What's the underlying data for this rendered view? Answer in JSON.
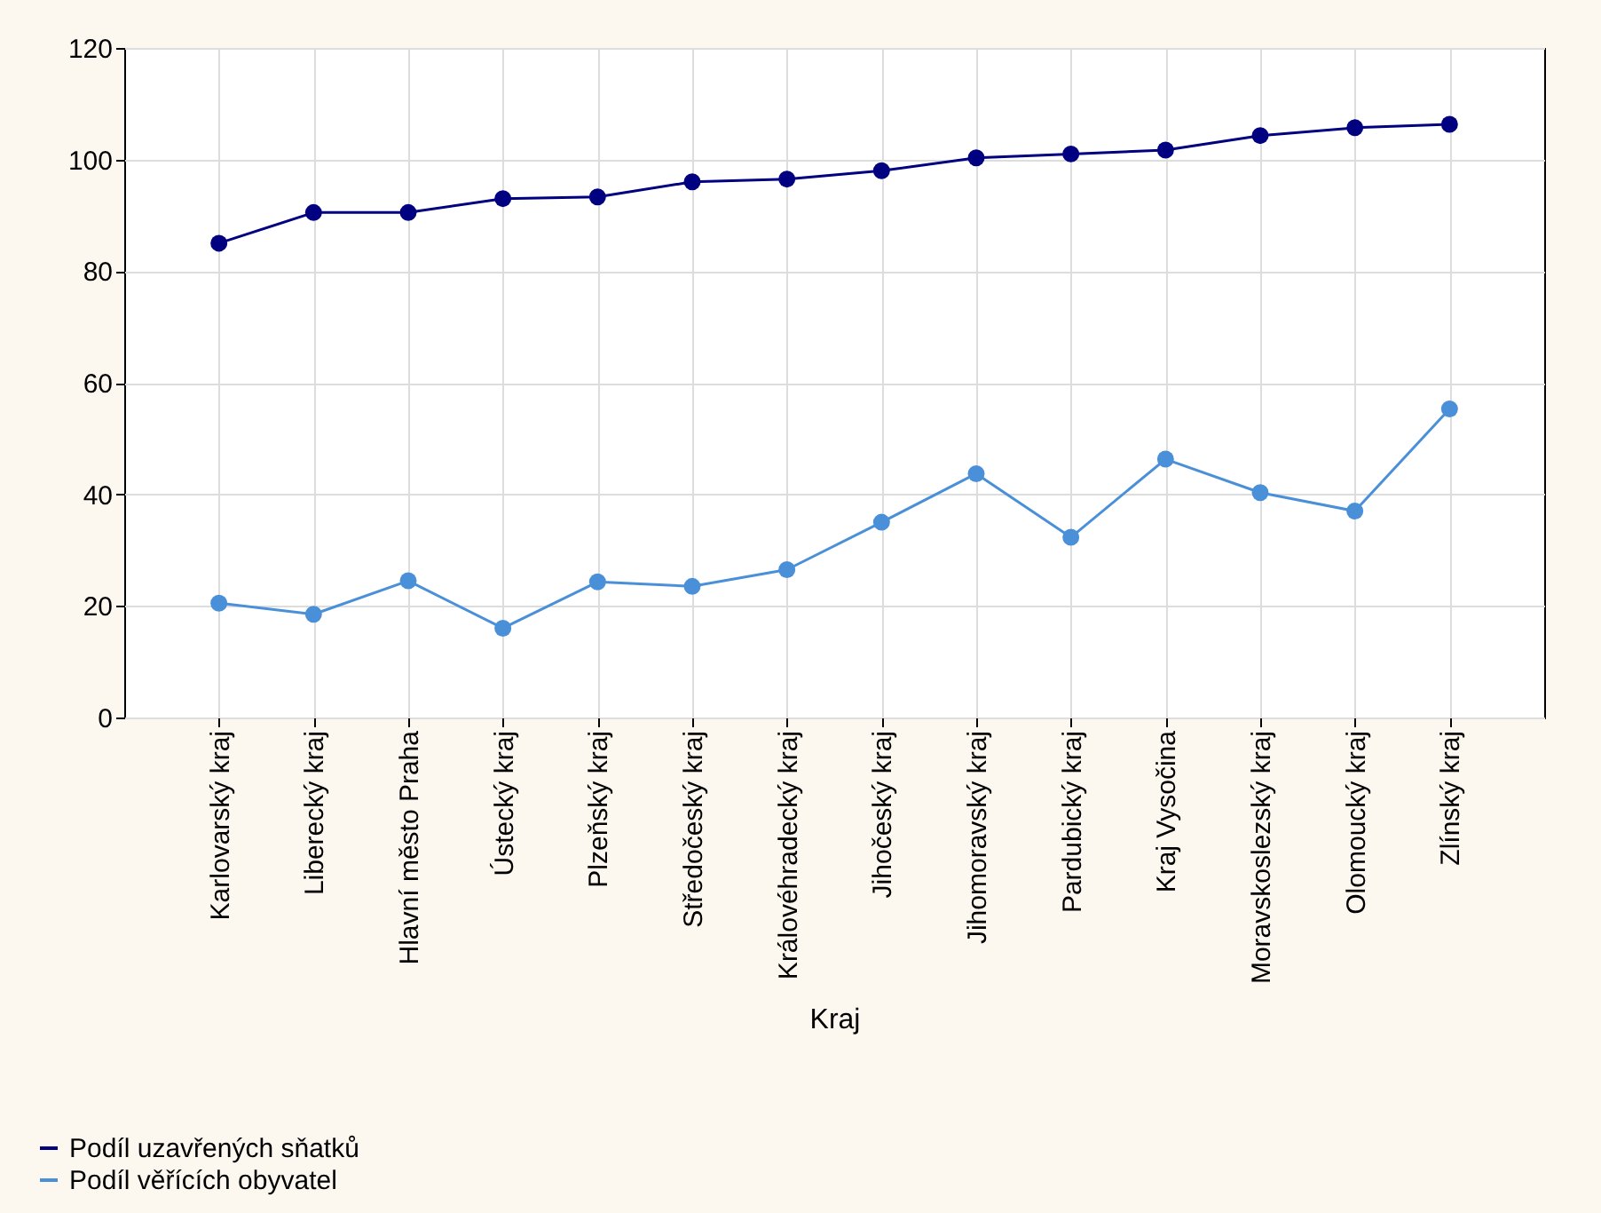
{
  "chart_data": {
    "type": "line",
    "xlabel": "Kraj",
    "categories": [
      "Karlovarský kraj",
      "Liberecký kraj",
      "Hlavní město Praha",
      "Ústecký kraj",
      "Plzeňský kraj",
      "Středočeský kraj",
      "Královéhradecký kraj",
      "Jihočeský kraj",
      "Jihomoravský kraj",
      "Pardubický kraj",
      "Kraj Vysočina",
      "Moravskoslezský kraj",
      "Olomoucký kraj",
      "Zlínský kraj"
    ],
    "series": [
      {
        "name": "Podíl uzavřených sňatků",
        "color": "#000080",
        "values": [
          85,
          90.5,
          90.5,
          93,
          93.3,
          96,
          96.5,
          98,
          100.3,
          101,
          101.7,
          104.3,
          105.7,
          106.3
        ]
      },
      {
        "name": "Podíl věřících obyvatel",
        "color": "#4a90d9",
        "values": [
          20.5,
          18.5,
          24.5,
          16,
          24.3,
          23.5,
          26.5,
          35,
          43.7,
          32.3,
          46.3,
          40.3,
          37,
          55.3
        ]
      }
    ],
    "ylim": [
      0,
      120
    ],
    "yticks": [
      0,
      20,
      40,
      60,
      80,
      100,
      120
    ],
    "grid": true,
    "legend": "bottom left",
    "marker": "circle",
    "line_style": "solid"
  }
}
